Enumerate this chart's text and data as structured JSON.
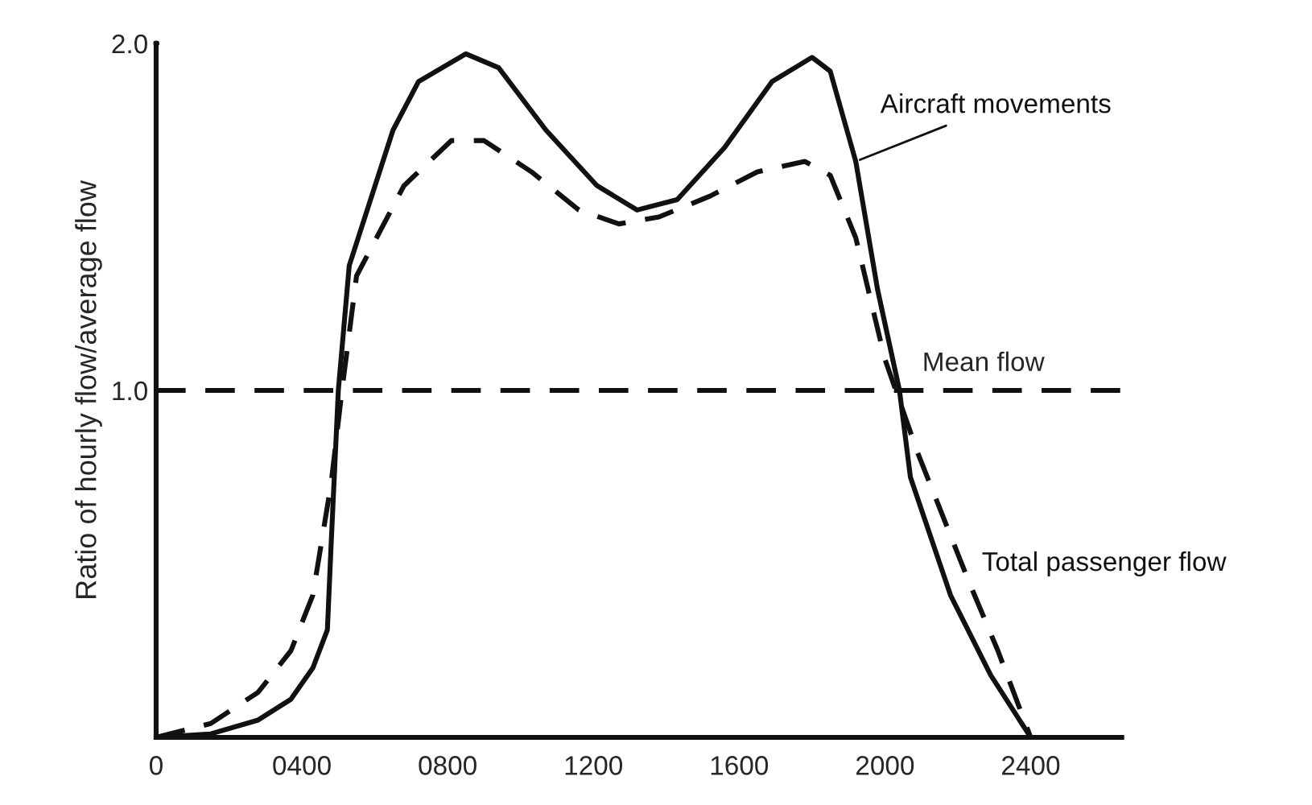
{
  "chart_data": {
    "type": "line",
    "ylabel": "Ratio of hourly flow/average flow",
    "xlim": [
      0,
      2650
    ],
    "ylim": [
      0,
      2.0
    ],
    "xticks": [
      0,
      {
        "value": 400,
        "label": "0400"
      },
      {
        "value": 800,
        "label": "0800"
      },
      1200,
      1600,
      2000,
      2400
    ],
    "yticks": [
      {
        "value": 1,
        "label": "1.0"
      },
      {
        "value": 2,
        "label": "2.0"
      }
    ],
    "grid": false,
    "legend": false,
    "marker": "none",
    "series": [
      {
        "name": "Aircraft movements",
        "color": "#111111",
        "line_style": "solid",
        "x": [
          0,
          150,
          280,
          370,
          430,
          470,
          480,
          500,
          530,
          650,
          720,
          850,
          940,
          1070,
          1210,
          1320,
          1430,
          1560,
          1690,
          1800,
          1850,
          1920,
          1980,
          2040,
          2070,
          2180,
          2290,
          2400
        ],
        "values": [
          0,
          0.01,
          0.05,
          0.11,
          0.2,
          0.31,
          0.55,
          1.0,
          1.36,
          1.75,
          1.89,
          1.97,
          1.93,
          1.75,
          1.59,
          1.52,
          1.55,
          1.7,
          1.89,
          1.96,
          1.92,
          1.66,
          1.29,
          1.0,
          0.75,
          0.41,
          0.18,
          0
        ]
      },
      {
        "name": "Total passenger flow",
        "color": "#111111",
        "line_style": "dashed",
        "x": [
          0,
          150,
          280,
          370,
          430,
          480,
          510,
          550,
          680,
          810,
          900,
          1030,
          1160,
          1270,
          1380,
          1520,
          1650,
          1780,
          1850,
          1920,
          2000,
          2090,
          2230,
          2310,
          2400
        ],
        "values": [
          0,
          0.04,
          0.13,
          0.25,
          0.41,
          0.73,
          1.0,
          1.33,
          1.59,
          1.72,
          1.72,
          1.63,
          1.52,
          1.48,
          1.5,
          1.56,
          1.63,
          1.66,
          1.62,
          1.44,
          1.09,
          0.82,
          0.45,
          0.25,
          0
        ]
      }
    ],
    "ref_lines": [
      {
        "axis": "y",
        "value": 1.0,
        "label": "Mean flow",
        "color": "#111111",
        "line_style": "dashed"
      }
    ]
  }
}
